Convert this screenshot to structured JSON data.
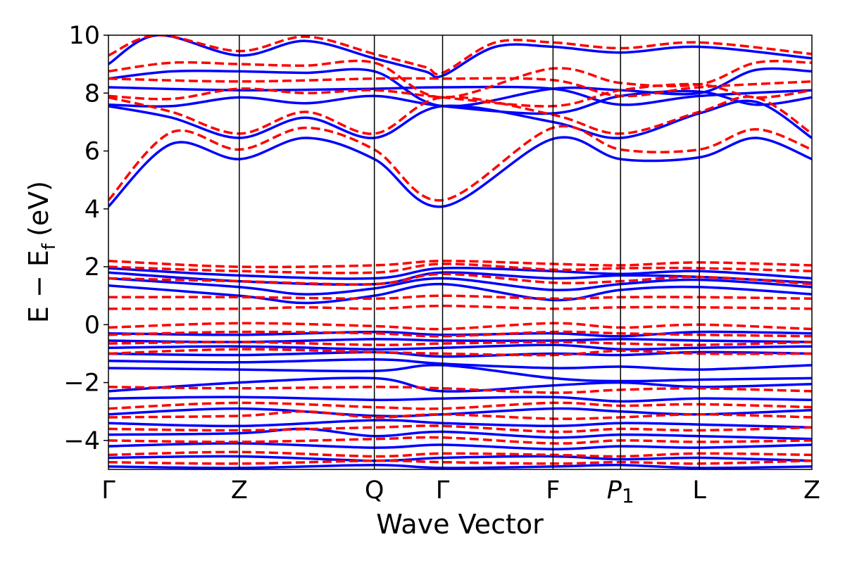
{
  "chart_data": {
    "type": "line",
    "xlabel": "Wave Vector",
    "ylabel": "E − E",
    "ylabel_subscript": "f",
    "ylabel_unit": "(eV)",
    "ylim": [
      -5,
      10
    ],
    "y_ticks": [
      -4,
      -2,
      0,
      2,
      4,
      6,
      8,
      10
    ],
    "y_tick_labels": [
      "−4",
      "−2",
      "0",
      "2",
      "4",
      "6",
      "8",
      "10"
    ],
    "k_points": [
      {
        "label": "Γ",
        "sub": "",
        "pos": 0.0
      },
      {
        "label": "Z",
        "sub": "",
        "pos": 0.186
      },
      {
        "label": "Q",
        "sub": "",
        "pos": 0.378
      },
      {
        "label": "Γ",
        "sub": "",
        "pos": 0.475
      },
      {
        "label": "F",
        "sub": "",
        "pos": 0.632
      },
      {
        "label": "P",
        "sub": "1",
        "pos": 0.728
      },
      {
        "label": "L",
        "sub": "",
        "pos": 0.84
      },
      {
        "label": "Z",
        "sub": "",
        "pos": 1.0
      }
    ],
    "colors": {
      "solid": "#0000ff",
      "dashed": "#ff0000"
    },
    "series": [
      {
        "style": "solid",
        "x": [
          0,
          0.09,
          0.186,
          0.28,
          0.378,
          0.475,
          0.632,
          0.728,
          0.84,
          0.92,
          1.0
        ],
        "y": [
          4.08,
          6.25,
          5.72,
          6.45,
          5.72,
          4.08,
          6.42,
          5.72,
          5.78,
          6.45,
          5.72
        ]
      },
      {
        "style": "solid",
        "x": [
          0,
          0.09,
          0.186,
          0.28,
          0.378,
          0.475,
          0.632,
          0.728,
          0.84,
          0.92,
          1.0
        ],
        "y": [
          7.55,
          7.15,
          6.45,
          7.15,
          6.45,
          7.55,
          7.0,
          6.45,
          7.3,
          7.7,
          6.45
        ]
      },
      {
        "style": "solid",
        "x": [
          0,
          0.09,
          0.186,
          0.28,
          0.378,
          0.475,
          0.632,
          0.728,
          0.84,
          0.92,
          1.0
        ],
        "y": [
          7.6,
          7.55,
          7.85,
          7.65,
          7.9,
          7.55,
          7.3,
          7.9,
          8.05,
          7.6,
          7.85
        ]
      },
      {
        "style": "solid",
        "x": [
          0,
          0.186,
          0.378,
          0.475,
          0.632,
          0.728,
          0.84,
          1.0
        ],
        "y": [
          8.2,
          8.1,
          8.15,
          8.2,
          8.15,
          7.6,
          7.9,
          8.1
        ]
      },
      {
        "style": "solid",
        "x": [
          0,
          0.09,
          0.186,
          0.28,
          0.378,
          0.475,
          0.632,
          0.728,
          0.84,
          0.92,
          1.0
        ],
        "y": [
          8.5,
          8.75,
          8.75,
          8.7,
          8.75,
          7.55,
          8.15,
          8.1,
          8.0,
          8.8,
          8.75
        ]
      },
      {
        "style": "solid",
        "x": [
          0,
          0.07,
          0.186,
          0.28,
          0.378,
          0.45,
          0.475,
          0.55,
          0.632,
          0.728,
          0.84,
          1.0
        ],
        "y": [
          9.0,
          10.0,
          9.3,
          9.8,
          9.2,
          8.75,
          8.6,
          9.6,
          9.6,
          9.4,
          9.6,
          9.2
        ]
      },
      {
        "style": "solid",
        "x": [
          0,
          0.186,
          0.378,
          0.475,
          0.632,
          0.728,
          0.84,
          1.0
        ],
        "y": [
          1.95,
          1.7,
          1.6,
          1.95,
          1.85,
          1.75,
          1.85,
          1.6
        ]
      },
      {
        "style": "solid",
        "x": [
          0,
          0.186,
          0.378,
          0.475,
          0.632,
          0.728,
          0.84,
          1.0
        ],
        "y": [
          1.8,
          1.5,
          1.4,
          1.8,
          1.6,
          1.7,
          1.65,
          1.45
        ]
      },
      {
        "style": "solid",
        "x": [
          0,
          0.186,
          0.28,
          0.378,
          0.475,
          0.632,
          0.728,
          0.84,
          1.0
        ],
        "y": [
          1.6,
          1.3,
          1.05,
          1.25,
          1.6,
          1.2,
          1.4,
          1.55,
          1.3
        ]
      },
      {
        "style": "solid",
        "x": [
          0,
          0.186,
          0.28,
          0.378,
          0.475,
          0.632,
          0.728,
          0.84,
          1.0
        ],
        "y": [
          1.35,
          1.0,
          0.75,
          1.0,
          1.4,
          0.85,
          1.2,
          1.3,
          1.05
        ]
      },
      {
        "style": "solid",
        "x": [
          0,
          0.186,
          0.378,
          0.475,
          0.632,
          0.728,
          0.84,
          1.0
        ],
        "y": [
          -0.3,
          -0.35,
          -0.25,
          -0.35,
          -0.3,
          -0.4,
          -0.25,
          -0.3
        ]
      },
      {
        "style": "solid",
        "x": [
          0,
          0.186,
          0.378,
          0.475,
          0.632,
          0.728,
          0.84,
          1.0
        ],
        "y": [
          -0.55,
          -0.6,
          -0.5,
          -0.55,
          -0.55,
          -0.5,
          -0.55,
          -0.6
        ]
      },
      {
        "style": "solid",
        "x": [
          0,
          0.186,
          0.378,
          0.475,
          0.632,
          0.728,
          0.84,
          1.0
        ],
        "y": [
          -0.8,
          -0.75,
          -0.85,
          -0.8,
          -0.7,
          -0.85,
          -0.8,
          -0.75
        ]
      },
      {
        "style": "solid",
        "x": [
          0,
          0.186,
          0.378,
          0.475,
          0.632,
          0.728,
          0.84,
          1.0
        ],
        "y": [
          -1.0,
          -1.05,
          -0.95,
          -1.1,
          -1.0,
          -1.05,
          -0.95,
          -1.0
        ]
      },
      {
        "style": "solid",
        "x": [
          0,
          0.186,
          0.378,
          0.475,
          0.632,
          0.728,
          0.84,
          1.0
        ],
        "y": [
          -1.25,
          -1.3,
          -1.2,
          -1.35,
          -1.5,
          -1.45,
          -1.55,
          -1.4
        ]
      },
      {
        "style": "solid",
        "x": [
          0,
          0.186,
          0.378,
          0.475,
          0.632,
          0.728,
          0.84,
          1.0
        ],
        "y": [
          -1.5,
          -1.55,
          -1.6,
          -1.4,
          -1.85,
          -1.95,
          -1.9,
          -1.85
        ]
      },
      {
        "style": "solid",
        "x": [
          0,
          0.186,
          0.378,
          0.475,
          0.632,
          0.728,
          0.84,
          1.0
        ],
        "y": [
          -2.3,
          -2.0,
          -1.85,
          -2.3,
          -2.1,
          -2.0,
          -2.15,
          -2.05
        ]
      },
      {
        "style": "solid",
        "x": [
          0,
          0.186,
          0.378,
          0.475,
          0.632,
          0.728,
          0.84,
          1.0
        ],
        "y": [
          -2.55,
          -2.5,
          -2.6,
          -2.55,
          -2.5,
          -2.65,
          -2.55,
          -2.6
        ]
      },
      {
        "style": "solid",
        "x": [
          0,
          0.186,
          0.378,
          0.475,
          0.632,
          0.728,
          0.84,
          1.0
        ],
        "y": [
          -3.1,
          -2.9,
          -3.15,
          -3.1,
          -2.9,
          -3.0,
          -3.1,
          -2.95
        ]
      },
      {
        "style": "solid",
        "x": [
          0,
          0.186,
          0.378,
          0.475,
          0.632,
          0.728,
          0.84,
          1.0
        ],
        "y": [
          -3.4,
          -3.5,
          -3.3,
          -3.4,
          -3.5,
          -3.4,
          -3.45,
          -3.55
        ]
      },
      {
        "style": "solid",
        "x": [
          0,
          0.186,
          0.28,
          0.378,
          0.475,
          0.632,
          0.728,
          0.84,
          1.0
        ],
        "y": [
          -3.8,
          -3.75,
          -3.6,
          -3.85,
          -3.7,
          -3.9,
          -3.8,
          -3.85,
          -3.95
        ]
      },
      {
        "style": "solid",
        "x": [
          0,
          0.186,
          0.378,
          0.475,
          0.632,
          0.728,
          0.84,
          1.0
        ],
        "y": [
          -4.2,
          -4.1,
          -4.25,
          -4.15,
          -4.3,
          -4.2,
          -4.25,
          -4.15
        ]
      },
      {
        "style": "solid",
        "x": [
          0,
          0.186,
          0.378,
          0.475,
          0.632,
          0.728,
          0.84,
          1.0
        ],
        "y": [
          -4.6,
          -4.55,
          -4.7,
          -4.6,
          -4.55,
          -4.65,
          -4.6,
          -4.7
        ]
      },
      {
        "style": "solid",
        "x": [
          0,
          0.186,
          0.378,
          0.475,
          0.632,
          0.728,
          0.84,
          1.0
        ],
        "y": [
          -4.9,
          -4.95,
          -4.85,
          -4.95,
          -4.9,
          -4.85,
          -4.95,
          -4.9
        ]
      },
      {
        "style": "dashed",
        "x": [
          0,
          0.09,
          0.186,
          0.28,
          0.378,
          0.475,
          0.632,
          0.728,
          0.84,
          0.92,
          1.0
        ],
        "y": [
          4.3,
          6.65,
          6.05,
          6.8,
          6.05,
          4.3,
          6.8,
          6.05,
          6.05,
          6.75,
          6.05
        ]
      },
      {
        "style": "dashed",
        "x": [
          0,
          0.09,
          0.186,
          0.28,
          0.378,
          0.475,
          0.632,
          0.728,
          0.84,
          0.92,
          1.0
        ],
        "y": [
          7.85,
          7.35,
          6.6,
          7.35,
          6.6,
          7.85,
          7.25,
          6.6,
          7.35,
          7.85,
          6.6
        ]
      },
      {
        "style": "dashed",
        "x": [
          0,
          0.09,
          0.186,
          0.28,
          0.378,
          0.475,
          0.632,
          0.728,
          0.84,
          0.92,
          1.0
        ],
        "y": [
          7.9,
          7.8,
          8.15,
          8.0,
          8.1,
          7.85,
          7.55,
          8.1,
          8.3,
          7.85,
          8.1
        ]
      },
      {
        "style": "dashed",
        "x": [
          0,
          0.186,
          0.378,
          0.475,
          0.632,
          0.728,
          0.84,
          1.0
        ],
        "y": [
          8.5,
          8.4,
          8.5,
          8.5,
          8.45,
          7.9,
          8.2,
          8.4
        ]
      },
      {
        "style": "dashed",
        "x": [
          0,
          0.09,
          0.186,
          0.28,
          0.378,
          0.475,
          0.632,
          0.728,
          0.84,
          0.92,
          1.0
        ],
        "y": [
          8.75,
          9.05,
          9.0,
          8.95,
          9.05,
          7.85,
          8.85,
          8.35,
          8.3,
          9.05,
          9.05
        ]
      },
      {
        "style": "dashed",
        "x": [
          0,
          0.07,
          0.186,
          0.28,
          0.378,
          0.45,
          0.475,
          0.55,
          0.632,
          0.728,
          0.84,
          1.0
        ],
        "y": [
          9.3,
          10.0,
          9.45,
          9.95,
          9.35,
          8.9,
          8.7,
          9.75,
          9.75,
          9.55,
          9.75,
          9.35
        ]
      },
      {
        "style": "dashed",
        "x": [
          0,
          0.186,
          0.378,
          0.475,
          0.632,
          0.728,
          0.84,
          1.0
        ],
        "y": [
          2.2,
          2.0,
          2.05,
          2.2,
          2.1,
          2.05,
          2.15,
          2.05
        ]
      },
      {
        "style": "dashed",
        "x": [
          0,
          0.186,
          0.378,
          0.475,
          0.632,
          0.728,
          0.84,
          1.0
        ],
        "y": [
          2.0,
          1.85,
          1.8,
          2.1,
          1.9,
          1.95,
          1.95,
          1.85
        ]
      },
      {
        "style": "dashed",
        "x": [
          0,
          0.186,
          0.378,
          0.475,
          0.632,
          0.728,
          0.84,
          1.0
        ],
        "y": [
          1.6,
          1.5,
          1.4,
          1.75,
          1.45,
          1.5,
          1.65,
          1.4
        ]
      },
      {
        "style": "dashed",
        "x": [
          0,
          0.186,
          0.378,
          0.475,
          0.632,
          0.728,
          0.84,
          1.0
        ],
        "y": [
          0.95,
          0.95,
          0.9,
          1.0,
          0.9,
          0.95,
          0.95,
          0.9
        ]
      },
      {
        "style": "dashed",
        "x": [
          0,
          0.186,
          0.28,
          0.378,
          0.475,
          0.632,
          0.728,
          0.84,
          1.0
        ],
        "y": [
          0.55,
          0.55,
          0.6,
          0.55,
          0.65,
          0.55,
          0.6,
          0.6,
          0.55
        ]
      },
      {
        "style": "dashed",
        "x": [
          0,
          0.186,
          0.378,
          0.475,
          0.632,
          0.728,
          0.84,
          1.0
        ],
        "y": [
          -0.1,
          0.05,
          -0.05,
          -0.15,
          0.05,
          -0.1,
          0.0,
          -0.15
        ]
      },
      {
        "style": "dashed",
        "x": [
          0,
          0.186,
          0.378,
          0.475,
          0.632,
          0.728,
          0.84,
          1.0
        ],
        "y": [
          -0.35,
          -0.25,
          -0.3,
          -0.4,
          -0.25,
          -0.3,
          -0.35,
          -0.4
        ]
      },
      {
        "style": "dashed",
        "x": [
          0,
          0.186,
          0.378,
          0.475,
          0.632,
          0.728,
          0.84,
          1.0
        ],
        "y": [
          -0.65,
          -0.6,
          -0.7,
          -0.65,
          -0.6,
          -0.65,
          -0.7,
          -0.6
        ]
      },
      {
        "style": "dashed",
        "x": [
          0,
          0.186,
          0.378,
          0.475,
          0.632,
          0.728,
          0.84,
          1.0
        ],
        "y": [
          -1.0,
          -0.85,
          -0.95,
          -1.0,
          -1.05,
          -0.9,
          -1.0,
          -1.0
        ]
      },
      {
        "style": "dashed",
        "x": [
          0,
          0.186,
          0.378,
          0.475,
          0.632,
          0.728,
          0.84,
          1.0
        ],
        "y": [
          -2.15,
          -2.2,
          -2.15,
          -2.2,
          -2.35,
          -2.25,
          -2.2,
          -2.3
        ]
      },
      {
        "style": "dashed",
        "x": [
          0,
          0.186,
          0.378,
          0.475,
          0.632,
          0.728,
          0.84,
          1.0
        ],
        "y": [
          -2.9,
          -2.7,
          -2.85,
          -2.9,
          -2.7,
          -2.8,
          -2.75,
          -2.85
        ]
      },
      {
        "style": "dashed",
        "x": [
          0,
          0.186,
          0.28,
          0.378,
          0.475,
          0.632,
          0.728,
          0.84,
          1.0
        ],
        "y": [
          -3.2,
          -3.15,
          -3.0,
          -3.2,
          -3.1,
          -3.25,
          -3.2,
          -3.1,
          -3.2
        ]
      },
      {
        "style": "dashed",
        "x": [
          0,
          0.186,
          0.378,
          0.475,
          0.632,
          0.728,
          0.84,
          1.0
        ],
        "y": [
          -3.6,
          -3.65,
          -3.55,
          -3.5,
          -3.7,
          -3.6,
          -3.65,
          -3.55
        ]
      },
      {
        "style": "dashed",
        "x": [
          0,
          0.186,
          0.378,
          0.475,
          0.632,
          0.728,
          0.84,
          1.0
        ],
        "y": [
          -4.0,
          -4.05,
          -3.95,
          -3.9,
          -4.1,
          -4.0,
          -4.05,
          -4.0
        ]
      },
      {
        "style": "dashed",
        "x": [
          0,
          0.186,
          0.378,
          0.475,
          0.632,
          0.728,
          0.84,
          1.0
        ],
        "y": [
          -4.5,
          -4.4,
          -4.55,
          -4.45,
          -4.5,
          -4.55,
          -4.45,
          -4.5
        ]
      },
      {
        "style": "dashed",
        "x": [
          0,
          0.186,
          0.378,
          0.475,
          0.632,
          0.728,
          0.84,
          1.0
        ],
        "y": [
          -4.75,
          -4.8,
          -4.7,
          -4.75,
          -4.8,
          -4.75,
          -4.8,
          -4.7
        ]
      }
    ]
  }
}
